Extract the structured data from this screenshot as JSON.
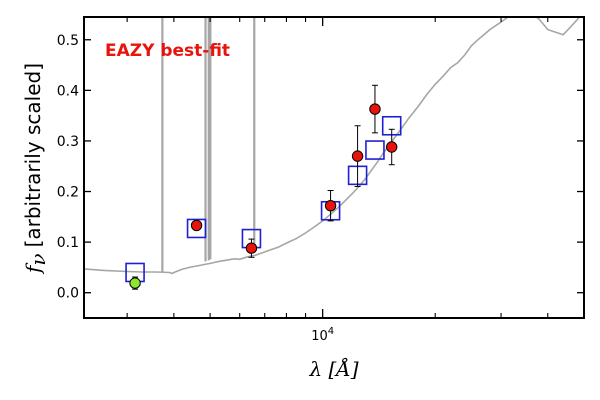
{
  "chart_data": {
    "type": "scatter",
    "annotation": "EAZY best-fit",
    "xlabel": "λ [Å]",
    "ylabel_main": "[arbitrarily scaled]",
    "ylabel_symbol": "f",
    "ylabel_sub": "ν",
    "x_scale": "log",
    "xlim": [
      2300,
      50000
    ],
    "ylim": [
      -0.05,
      0.545
    ],
    "x_tick_labels": [
      {
        "base": "10",
        "exp": "4",
        "value": 10000
      }
    ],
    "x_major_ticks": [
      10000
    ],
    "x_minor_ticks": [
      3000,
      4000,
      5000,
      6000,
      7000,
      8000,
      9000,
      20000,
      30000,
      40000
    ],
    "y_ticks": [
      0.0,
      0.1,
      0.2,
      0.3,
      0.4,
      0.5
    ],
    "y_tick_labels": [
      "0.0",
      "0.1",
      "0.2",
      "0.3",
      "0.4",
      "0.5"
    ],
    "grid": false,
    "colors": {
      "template": "#a6a6a6",
      "model_box": "#1f1fd6",
      "observed": "#e8140c",
      "upper": "#8ee62e",
      "errorbar": "#000000",
      "annotation": "#e8140c"
    },
    "template_spectrum": {
      "x": [
        2300,
        2600,
        3000,
        3300,
        3600,
        3900,
        3950,
        4000,
        4200,
        4400,
        4700,
        5000,
        5300,
        5500,
        5800,
        6000,
        6300,
        6600,
        6900,
        7200,
        7600,
        8000,
        8500,
        9000,
        9500,
        10000,
        10500,
        11000,
        11500,
        12000,
        12500,
        13000,
        13500,
        14000,
        14500,
        15000,
        16000,
        17000,
        18000,
        19000,
        20000,
        21000,
        22000,
        23000,
        24000,
        25000,
        26000,
        27000,
        28000,
        30000,
        32000,
        34000,
        36000,
        38000,
        40000,
        42000,
        44000,
        46000,
        48000,
        50000
      ],
      "y": [
        0.047,
        0.044,
        0.042,
        0.041,
        0.041,
        0.04,
        0.038,
        0.04,
        0.046,
        0.05,
        0.054,
        0.058,
        0.062,
        0.064,
        0.067,
        0.066,
        0.071,
        0.074,
        0.079,
        0.084,
        0.09,
        0.098,
        0.107,
        0.118,
        0.13,
        0.142,
        0.155,
        0.168,
        0.182,
        0.196,
        0.21,
        0.225,
        0.242,
        0.258,
        0.275,
        0.29,
        0.318,
        0.345,
        0.368,
        0.392,
        0.412,
        0.428,
        0.445,
        0.455,
        0.47,
        0.488,
        0.5,
        0.51,
        0.52,
        0.535,
        0.55,
        0.56,
        0.555,
        0.54,
        0.52,
        0.515,
        0.51,
        0.525,
        0.54,
        0.56
      ]
    },
    "emission_lines": [
      {
        "x": 3727,
        "y_base": 0.04
      },
      {
        "x": 4861,
        "y_base": 0.062
      },
      {
        "x": 4959,
        "y_base": 0.064
      },
      {
        "x": 5007,
        "y_base": 0.066
      },
      {
        "x": 6563,
        "y_base": 0.08
      }
    ],
    "model_boxes": [
      {
        "x": 3150,
        "y": 0.04
      },
      {
        "x": 4600,
        "y": 0.127
      },
      {
        "x": 6450,
        "y": 0.107
      },
      {
        "x": 10500,
        "y": 0.162
      },
      {
        "x": 12400,
        "y": 0.232
      },
      {
        "x": 13800,
        "y": 0.282
      },
      {
        "x": 15300,
        "y": 0.33
      }
    ],
    "observed_points": [
      {
        "x": 4600,
        "y": 0.133,
        "err": 0.008,
        "color_key": "observed"
      },
      {
        "x": 6450,
        "y": 0.088,
        "err": 0.018,
        "color_key": "observed"
      },
      {
        "x": 10500,
        "y": 0.172,
        "err": 0.03,
        "color_key": "observed"
      },
      {
        "x": 12400,
        "y": 0.27,
        "err": 0.06,
        "color_key": "observed"
      },
      {
        "x": 13800,
        "y": 0.363,
        "err": 0.047,
        "color_key": "observed"
      },
      {
        "x": 15300,
        "y": 0.288,
        "err": 0.035,
        "color_key": "observed"
      },
      {
        "x": 3150,
        "y": 0.019,
        "err": 0.012,
        "color_key": "upper"
      }
    ]
  }
}
